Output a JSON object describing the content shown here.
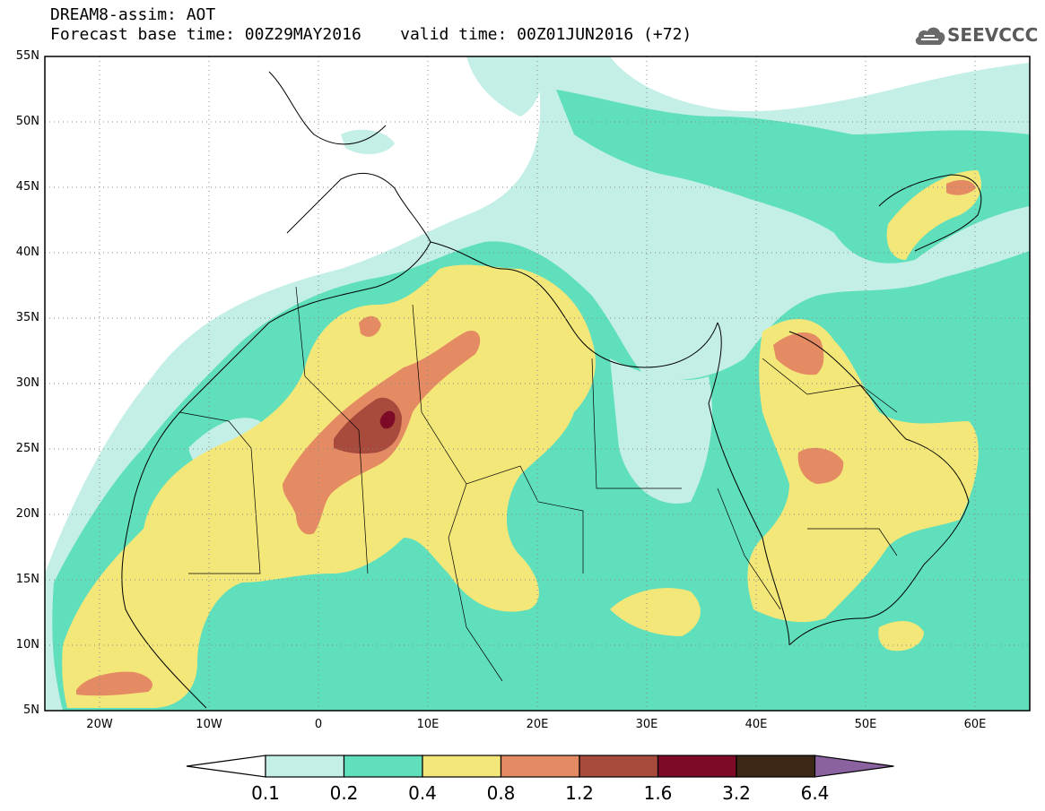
{
  "title": {
    "line1": "DREAM8-assim: AOT",
    "line2": "Forecast base time: 00Z29MAY2016    valid time: 00Z01JUN2016 (+72)"
  },
  "logo": {
    "text": "SEEVCCC",
    "icon": "cloud-icon"
  },
  "map": {
    "lon_range": [
      -25,
      65
    ],
    "lat_range": [
      5,
      55
    ],
    "lat_ticks": [
      "55N",
      "50N",
      "45N",
      "40N",
      "35N",
      "30N",
      "25N",
      "20N",
      "15N",
      "10N",
      "5N"
    ],
    "lon_ticks": [
      "20W",
      "10W",
      "0",
      "10E",
      "20E",
      "30E",
      "40E",
      "50E",
      "60E"
    ],
    "grid": "dotted"
  },
  "colorbar": {
    "labels": [
      "0.1",
      "0.2",
      "0.4",
      "0.8",
      "1.2",
      "1.6",
      "3.2",
      "6.4"
    ],
    "colors": [
      "#ffffff",
      "#c3efe6",
      "#5fdfbb",
      "#f3e779",
      "#e58b63",
      "#a84a3c",
      "#7d0a26",
      "#3d2816",
      "#8b62a0"
    ]
  },
  "colors": {
    "aot_0_1_0_2": "#c3efe6",
    "aot_0_2_0_4": "#5fdfbb",
    "aot_0_4_0_8": "#f3e779",
    "aot_0_8_1_2": "#e58b63",
    "aot_1_2_1_6": "#a84a3c",
    "aot_1_6_3_2": "#7d0a26"
  }
}
